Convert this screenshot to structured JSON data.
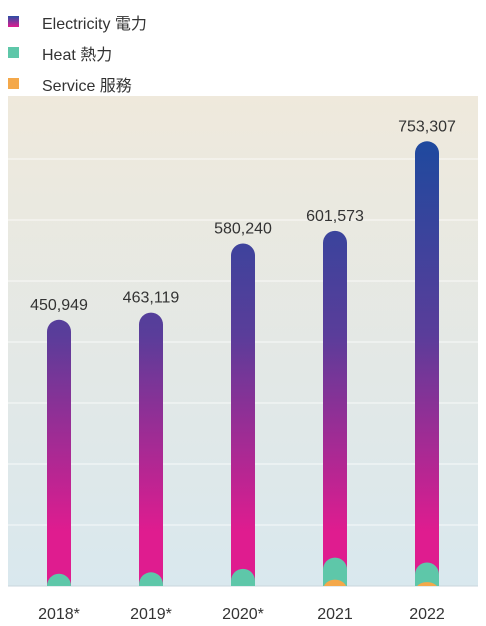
{
  "legend": [
    {
      "label": "Electricity 電力",
      "color": "#5b3c98"
    },
    {
      "label": "Heat 熱力",
      "color": "#5ec7a9"
    },
    {
      "label": "Service 服務",
      "color": "#f4a84a"
    }
  ],
  "chart_data": {
    "type": "bar",
    "categories": [
      "2018*",
      "2019*",
      "2020*",
      "2021",
      "2022"
    ],
    "series": [
      {
        "name": "Electricity 電力",
        "values": [
          450949,
          463119,
          580240,
          601573,
          753307
        ]
      },
      {
        "name": "Heat 熱力",
        "values": [
          null,
          null,
          null,
          null,
          null
        ]
      },
      {
        "name": "Service 服務",
        "values": [
          null,
          null,
          null,
          null,
          null
        ]
      }
    ],
    "data_labels": [
      "450,949",
      "463,119",
      "580,240",
      "601,573",
      "753,307"
    ],
    "heat_marker_levels": [
      0.025,
      0.028,
      0.035,
      0.058,
      0.048
    ],
    "service_marker_levels": [
      0,
      0,
      0,
      0.013,
      0.008
    ],
    "title": "",
    "xlabel": "",
    "ylabel": "",
    "ylim": [
      0,
      830000
    ],
    "grid": true,
    "legend_position": "top-left",
    "colors": {
      "electricity_top": "#1b4a9e",
      "electricity_bottom": "#df1c8f",
      "heat": "#5ec7a9",
      "service": "#f4a84a",
      "background_top": "#efe9dc",
      "background_bottom": "#d9e8ee"
    }
  }
}
